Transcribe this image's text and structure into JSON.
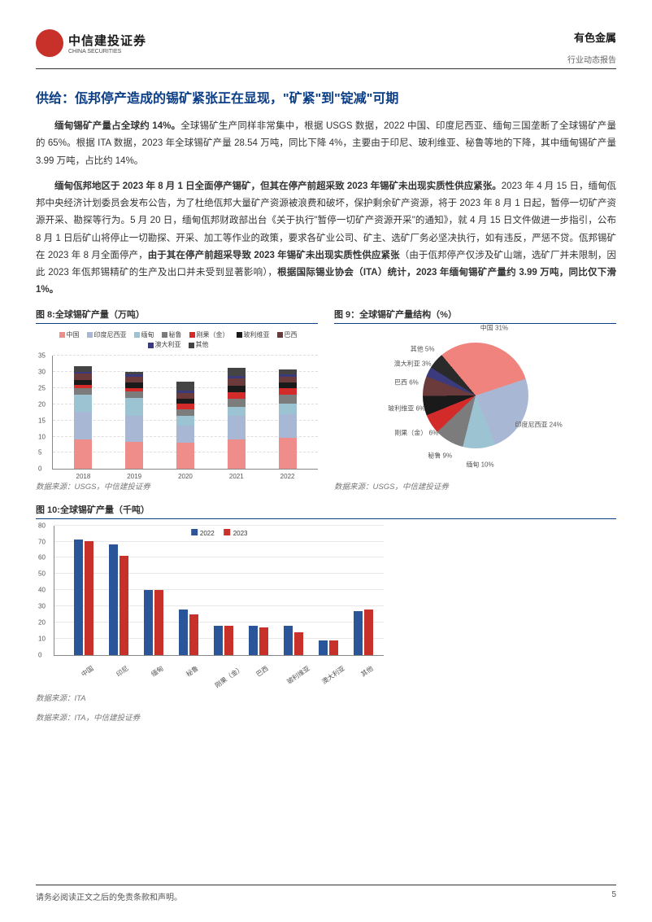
{
  "header": {
    "logo_cn": "中信建投证券",
    "logo_en": "CHINA SECURITIES",
    "category": "有色金属",
    "report_type": "行业动态报告"
  },
  "section_title": "供给：佤邦停产造成的锡矿紧张正在显现，\"矿紧\"到\"锭减\"可期",
  "paragraphs": [
    {
      "runs": [
        {
          "t": "缅甸锡矿产量占全球约 14%。",
          "b": true
        },
        {
          "t": "全球锡矿生产同样非常集中，根据 USGS 数据，2022 中国、印度尼西亚、缅甸三国垄断了全球锡矿产量的 65%。根据 ITA 数据，2023 年全球锡矿产量 28.54 万吨，同比下降 4%，主要由于印尼、玻利维亚、秘鲁等地的下降，其中缅甸锡矿产量 3.99 万吨，占比约 14%。",
          "b": false
        }
      ]
    },
    {
      "runs": [
        {
          "t": "缅甸佤邦地区于 2023 年 8 月 1 日全面停产锡矿，但其在停产前超采致 2023 年锡矿未出现实质性供应紧张。",
          "b": true
        },
        {
          "t": "2023 年 4 月 15 日，缅甸佤邦中央经济计划委员会发布公告，为了杜绝佤邦大量矿产资源被浪费和破坏，保护剩余矿产资源，将于 2023 年 8 月 1 日起，暂停一切矿产资源开采、勘探等行为。5 月 20 日，缅甸佤邦财政部出台《关于执行\"暂停一切矿产资源开采\"的通知》，就 4 月 15 日文件做进一步指引，公布 8 月 1 日后矿山将停止一切勘探、开采、加工等作业的政策，要求各矿业公司、矿主、选矿厂务必坚决执行，如有违反，严惩不贷。佤邦锡矿在 2023 年 8 月全面停产，",
          "b": false
        },
        {
          "t": "由于其在停产前超采导致 2023 年锡矿未出现实质性供应紧张",
          "b": true
        },
        {
          "t": "（由于佤邦停产仅涉及矿山端，选矿厂并未限制，因此 2023 年佤邦锡精矿的生产及出口并未受到显著影响），",
          "b": false
        },
        {
          "t": "根据国际锡业协会（ITA）统计，2023 年缅甸锡矿产量约 3.99 万吨，同比仅下滑 1%。",
          "b": true
        }
      ]
    }
  ],
  "chart8": {
    "title": "图 8:全球锡矿产量（万吨）",
    "type": "stacked-bar",
    "categories": [
      "2018",
      "2019",
      "2020",
      "2021",
      "2022"
    ],
    "series": [
      {
        "name": "中国",
        "color": "#ef8d8a",
        "values": [
          9.0,
          8.4,
          8.1,
          9.1,
          9.5
        ]
      },
      {
        "name": "印度尼西亚",
        "color": "#a8b8d4",
        "values": [
          8.5,
          8.0,
          5.3,
          7.1,
          7.4
        ]
      },
      {
        "name": "缅甸",
        "color": "#9cc3d1",
        "values": [
          5.4,
          5.4,
          2.9,
          2.8,
          3.1
        ]
      },
      {
        "name": "秘鲁",
        "color": "#7c7c7c",
        "values": [
          1.8,
          2.0,
          2.1,
          2.6,
          2.9
        ]
      },
      {
        "name": "刚果（金）",
        "color": "#d32a2a",
        "values": [
          1.0,
          1.0,
          1.7,
          2.0,
          1.8
        ]
      },
      {
        "name": "玻利维亚",
        "color": "#1a1a1a",
        "values": [
          1.7,
          1.7,
          1.5,
          2.0,
          1.8
        ]
      },
      {
        "name": "巴西",
        "color": "#6b3a3a",
        "values": [
          1.8,
          1.7,
          1.7,
          2.2,
          1.8
        ]
      },
      {
        "name": "澳大利亚",
        "color": "#3a3a7c",
        "values": [
          0.7,
          0.8,
          0.8,
          0.9,
          0.9
        ]
      },
      {
        "name": "其他",
        "color": "#444444",
        "values": [
          1.7,
          0.7,
          2.8,
          2.4,
          1.5
        ]
      }
    ],
    "ylim": [
      0,
      35
    ],
    "ystep": 5,
    "source": "数据来源：USGS，中信建投证券"
  },
  "chart9": {
    "title": "图 9：全球锡矿产量结构（%）",
    "type": "pie",
    "slices": [
      {
        "name": "中国",
        "value": 31,
        "color": "#f0837e"
      },
      {
        "name": "印度尼西亚",
        "value": 24,
        "color": "#a8b8d4"
      },
      {
        "name": "缅甸",
        "value": 10,
        "color": "#9cc3d1"
      },
      {
        "name": "秘鲁",
        "value": 9,
        "color": "#7c7c7c"
      },
      {
        "name": "刚果（金）",
        "value": 6,
        "color": "#d32a2a"
      },
      {
        "name": "玻利维亚",
        "value": 6,
        "color": "#1a1a1a"
      },
      {
        "name": "巴西",
        "value": 6,
        "color": "#6b3a3a"
      },
      {
        "name": "澳大利亚",
        "value": 3,
        "color": "#3a3a7c"
      },
      {
        "name": "其他",
        "value": 5,
        "color": "#2a2a2a"
      }
    ],
    "source": "数据来源：USGS，中信建投证券"
  },
  "chart10": {
    "title": "图 10:全球锡矿产量（千吨）",
    "type": "grouped-bar",
    "categories": [
      "中国",
      "印尼",
      "缅甸",
      "秘鲁",
      "刚果（金）",
      "巴西",
      "玻利维亚",
      "澳大利亚",
      "其他"
    ],
    "series": [
      {
        "name": "2022",
        "color": "#2a5699",
        "values": [
          71,
          68,
          40,
          28,
          18,
          18,
          18,
          9,
          27
        ]
      },
      {
        "name": "2023",
        "color": "#c8302a",
        "values": [
          70,
          61,
          40,
          25,
          18,
          17,
          14,
          9,
          28
        ]
      }
    ],
    "ylim": [
      0,
      80
    ],
    "ystep": 10,
    "source": "数据来源：ITA",
    "source2": "数据来源：ITA，中信建投证券"
  },
  "footer": {
    "disclaimer": "请务必阅读正文之后的免责条款和声明。",
    "page": "5"
  },
  "colors": {
    "brand_red": "#c8302a",
    "title_blue": "#0b3e86"
  }
}
